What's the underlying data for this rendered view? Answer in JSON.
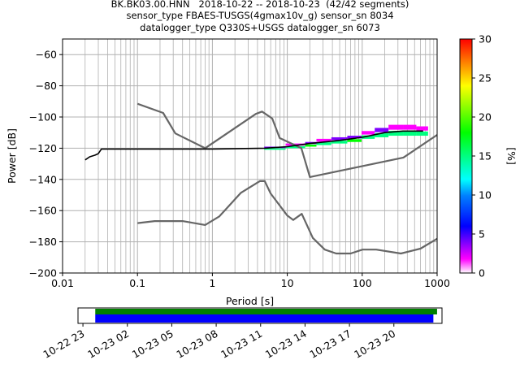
{
  "title_lines": [
    "BK.BK03.00.HNN   2018-10-22 -- 2018-10-23  (42/42 segments)",
    "sensor_type FBAES-TUSGS(4gmax10v_g) sensor_sn 8034",
    "datalogger_type Q330S+USGS datalogger_sn 6073"
  ],
  "chart_data": [
    {
      "type": "line",
      "title": "BK.BK03.00.HNN   2018-10-22 -- 2018-10-23  (42/42 segments)",
      "xlabel": "Period [s]",
      "ylabel": "Power [dB]",
      "xscale": "log",
      "xlim": [
        0.01,
        1000
      ],
      "ylim": [
        -200,
        -50
      ],
      "xtick_labels": [
        "0.01",
        "0.1",
        "1",
        "10",
        "100",
        "1000"
      ],
      "xtick_values": [
        0.01,
        0.1,
        1,
        10,
        100,
        1000
      ],
      "ytick_values": [
        -200,
        -180,
        -160,
        -140,
        -120,
        -100,
        -80,
        -60
      ],
      "grid": true,
      "colorbar": {
        "label": "[%]",
        "range": [
          0,
          30
        ],
        "tick_values": [
          0,
          5,
          10,
          15,
          20,
          25,
          30
        ],
        "colormap": [
          "#ffffff",
          "#ff00ff",
          "#7f00ff",
          "#0000ff",
          "#0080ff",
          "#00ffff",
          "#00ff80",
          "#00ff00",
          "#80ff00",
          "#ffff00",
          "#ff8000",
          "#ff0000"
        ]
      },
      "series": [
        {
          "role": "high-noise-model",
          "color": "#666666",
          "x": [
            0.1,
            0.22,
            0.32,
            0.8,
            3.8,
            4.6,
            6.3,
            7.9,
            15.4,
            20,
            354.8,
            1000
          ],
          "y": [
            -91.5,
            -97.4,
            -110.5,
            -120,
            -98,
            -96.5,
            -101,
            -113.5,
            -120,
            -138.5,
            -126,
            -111.5
          ]
        },
        {
          "role": "low-noise-model",
          "color": "#666666",
          "x": [
            0.1,
            0.17,
            0.4,
            0.8,
            1.24,
            2.4,
            4.3,
            5,
            6,
            10,
            12,
            15.6,
            21.9,
            31.6,
            45,
            70,
            101,
            154,
            328,
            600,
            1000
          ],
          "y": [
            -168,
            -166.7,
            -166.7,
            -169.2,
            -163.7,
            -148.6,
            -141.1,
            -141.1,
            -149,
            -163.2,
            -166,
            -162.1,
            -177.5,
            -185,
            -187.5,
            -187.5,
            -185,
            -185,
            -187.5,
            -184.4,
            -178
          ]
        },
        {
          "role": "psd-mode",
          "color": "#000000",
          "x": [
            0.02,
            0.023,
            0.027,
            0.03,
            0.033,
            0.1,
            1,
            5,
            10,
            20,
            50,
            100,
            200,
            350,
            500,
            650
          ],
          "y": [
            -127.5,
            -125.5,
            -124.5,
            -123.5,
            -120.5,
            -120.5,
            -120.5,
            -120,
            -119,
            -117,
            -115,
            -113,
            -110,
            -109,
            -109,
            -109
          ]
        }
      ],
      "psd_spread": [
        {
          "x": 6,
          "low": -121,
          "high": -119,
          "pct": 5
        },
        {
          "x": 15,
          "low": -120,
          "high": -117,
          "pct": 4
        },
        {
          "x": 20,
          "low": -119,
          "high": -116,
          "pct": 6
        },
        {
          "x": 30,
          "low": -118,
          "high": -114,
          "pct": 4
        },
        {
          "x": 50,
          "low": -117,
          "high": -113,
          "pct": 5
        },
        {
          "x": 80,
          "low": -116,
          "high": -112,
          "pct": 6
        },
        {
          "x": 120,
          "low": -114,
          "high": -109,
          "pct": 4
        },
        {
          "x": 180,
          "low": -113,
          "high": -107,
          "pct": 5
        },
        {
          "x": 280,
          "low": -112,
          "high": -105,
          "pct": 3
        },
        {
          "x": 450,
          "low": -112,
          "high": -105,
          "pct": 4
        },
        {
          "x": 620,
          "low": -112,
          "high": -106,
          "pct": 4
        }
      ]
    },
    {
      "type": "timeline",
      "xtick_labels": [
        "10-22 23",
        "10-23 02",
        "10-23 05",
        "10-23 08",
        "10-23 11",
        "10-23 14",
        "10-23 17",
        "10-23 20"
      ],
      "xrange": [
        "2018-10-22 22:40",
        "2018-10-23 23:15"
      ],
      "bars": [
        {
          "color": "#008000",
          "start": "2018-10-22 23:50",
          "end": "2018-10-23 22:55"
        },
        {
          "color": "#0000ff",
          "start": "2018-10-22 23:50",
          "end": "2018-10-23 22:40"
        }
      ]
    }
  ]
}
